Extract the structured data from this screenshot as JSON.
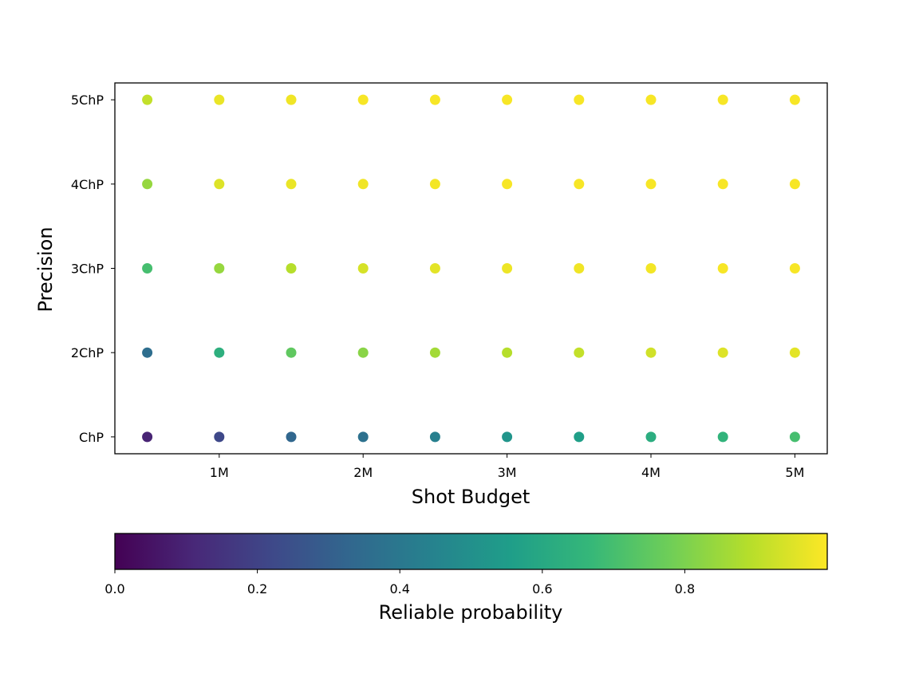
{
  "chart_data": {
    "type": "scatter",
    "title": "",
    "xlabel": "Shot Budget",
    "ylabel": "Precision",
    "xlim": [
      0.275,
      5.225
    ],
    "x_ticks": [
      {
        "value": 1.0,
        "label": "1M"
      },
      {
        "value": 2.0,
        "label": "2M"
      },
      {
        "value": 3.0,
        "label": "3M"
      },
      {
        "value": 4.0,
        "label": "4M"
      },
      {
        "value": 5.0,
        "label": "5M"
      }
    ],
    "y_categories": [
      "ChP",
      "2ChP",
      "3ChP",
      "4ChP",
      "5ChP"
    ],
    "x_values": [
      0.5,
      1.0,
      1.5,
      2.0,
      2.5,
      3.0,
      3.5,
      4.0,
      4.5,
      5.0
    ],
    "colorbar": {
      "label": "Reliable probability",
      "range": [
        0.0,
        1.0
      ],
      "orientation": "horizontal",
      "ticks": [
        {
          "value": 0.0,
          "label": "0.0"
        },
        {
          "value": 0.2,
          "label": "0.2"
        },
        {
          "value": 0.4,
          "label": "0.4"
        },
        {
          "value": 0.6,
          "label": "0.6"
        },
        {
          "value": 0.8,
          "label": "0.8"
        }
      ],
      "colormap": [
        "#440154",
        "#482878",
        "#3e4989",
        "#31688e",
        "#26828e",
        "#1f9e89",
        "#35b779",
        "#6ece58",
        "#b5de2b",
        "#fde725"
      ]
    },
    "series": [
      {
        "y": "ChP",
        "values": [
          0.1,
          0.22,
          0.33,
          0.37,
          0.43,
          0.52,
          0.56,
          0.62,
          0.65,
          0.7
        ]
      },
      {
        "y": "2ChP",
        "values": [
          0.36,
          0.63,
          0.75,
          0.82,
          0.86,
          0.89,
          0.91,
          0.93,
          0.95,
          0.96
        ]
      },
      {
        "y": "3ChP",
        "values": [
          0.7,
          0.84,
          0.89,
          0.94,
          0.96,
          0.975,
          0.98,
          0.985,
          0.99,
          0.99
        ]
      },
      {
        "y": "4ChP",
        "values": [
          0.84,
          0.95,
          0.97,
          0.98,
          0.985,
          0.99,
          0.99,
          0.99,
          0.99,
          0.99
        ]
      },
      {
        "y": "5ChP",
        "values": [
          0.91,
          0.97,
          0.98,
          0.99,
          0.99,
          0.99,
          0.99,
          0.99,
          0.99,
          0.99
        ]
      }
    ]
  }
}
